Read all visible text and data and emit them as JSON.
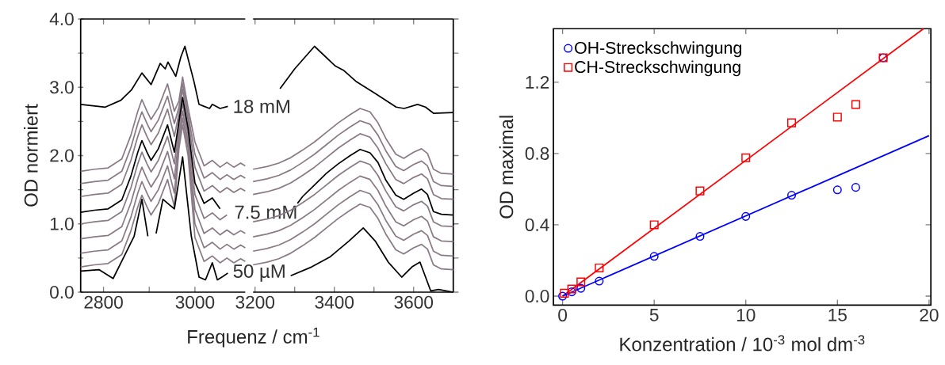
{
  "chart_data": [
    {
      "type": "line",
      "ylabel": "OD normiert",
      "xlabel": "Frequenz / cm$^{-1}$",
      "x": [
        2750,
        2780,
        2810,
        2840,
        2860,
        2875,
        2884,
        2895,
        2904,
        2920,
        2940,
        2955,
        2965,
        2973,
        2985,
        3000,
        3020,
        3038,
        3055,
        3070,
        3085,
        3100,
        3110
      ],
      "xlim": [
        2750,
        3110
      ],
      "ylim": [
        0,
        4
      ],
      "xticks": [
        2800,
        {
          "value": 2900,
          "label": null
        },
        3000
      ],
      "yticks": [
        {
          "value": 0,
          "label": "0.0"
        },
        {
          "value": 0.5,
          "label": null
        },
        {
          "value": 1,
          "label": "1.0"
        },
        {
          "value": 1.5,
          "label": null
        },
        {
          "value": 2,
          "label": "2.0"
        },
        {
          "value": 2.5,
          "label": null
        },
        {
          "value": 3,
          "label": "3.0"
        },
        {
          "value": 3.5,
          "label": null
        },
        {
          "value": 4,
          "label": "4.0"
        }
      ],
      "series": [
        {
          "color": "#000000",
          "x": [
            2750,
            2804,
            2838,
            2861,
            2884,
            2904,
            2924,
            2935,
            2941,
            2958,
            2969,
            2978,
            2998,
            3009,
            3032,
            3038,
            3055,
            3072
          ],
          "values": [
            2.75,
            2.71,
            2.81,
            2.96,
            3.21,
            3.04,
            3.35,
            3.27,
            3.37,
            3.16,
            3.44,
            3.6,
            3.08,
            2.75,
            2.69,
            2.75,
            2.69,
            2.72
          ]
        },
        {
          "color": "#8a7a86",
          "values": [
            1.77,
            1.8,
            1.82,
            1.95,
            2.3,
            2.65,
            2.82,
            2.65,
            2.53,
            2.7,
            3.05,
            2.65,
            2.8,
            3.15,
            2.7,
            2.2,
            1.85,
            1.93,
            1.83,
            1.9,
            1.83,
            1.89,
            1.85
          ]
        },
        {
          "color": "#8a7a86",
          "values": [
            1.59,
            1.62,
            1.64,
            1.77,
            2.12,
            2.47,
            2.64,
            2.47,
            2.35,
            2.52,
            2.87,
            2.47,
            2.71,
            3.06,
            2.61,
            2.02,
            1.67,
            1.75,
            1.65,
            1.72,
            1.65,
            1.71,
            1.67
          ]
        },
        {
          "color": "#8a7a86",
          "values": [
            1.4,
            1.43,
            1.45,
            1.58,
            1.93,
            2.28,
            2.45,
            2.28,
            2.16,
            2.33,
            2.68,
            2.28,
            2.62,
            2.97,
            2.52,
            1.83,
            1.48,
            1.56,
            1.46,
            1.53,
            1.46,
            1.52,
            1.48
          ]
        },
        {
          "color": "#8a7a86",
          "values": [
            1.0,
            1.03,
            1.05,
            1.18,
            1.53,
            1.88,
            2.05,
            1.88,
            1.76,
            1.93,
            2.28,
            1.88,
            2.41,
            2.76,
            2.31,
            1.43,
            1.08,
            1.16,
            1.06,
            1.13,
            null,
            null,
            null
          ]
        },
        {
          "color": "#8a7a86",
          "values": [
            0.78,
            0.81,
            0.83,
            0.96,
            1.31,
            1.66,
            1.83,
            1.66,
            1.54,
            1.71,
            2.06,
            1.66,
            2.3,
            2.65,
            2.2,
            1.21,
            0.86,
            0.94,
            0.84,
            0.91,
            0.84,
            0.9,
            0.86
          ]
        },
        {
          "color": "#8a7a86",
          "values": [
            0.57,
            0.6,
            0.62,
            0.75,
            1.1,
            1.45,
            1.62,
            1.45,
            1.33,
            1.5,
            1.85,
            1.45,
            2.2,
            2.55,
            2.1,
            1.0,
            0.65,
            0.73,
            0.63,
            0.7,
            0.63,
            0.69,
            0.65
          ]
        },
        {
          "color": "#8a7a86",
          "values": [
            0.37,
            0.4,
            0.42,
            0.55,
            0.9,
            1.25,
            1.42,
            1.25,
            1.13,
            1.3,
            1.65,
            1.25,
            2.1,
            2.45,
            2.0,
            0.8,
            0.45,
            0.53,
            0.43,
            0.5,
            0.43,
            0.49,
            0.45
          ]
        },
        {
          "color": "#000000",
          "values": [
            1.17,
            1.2,
            1.22,
            1.35,
            1.7,
            2.05,
            2.22,
            2.05,
            1.93,
            2.1,
            2.45,
            2.05,
            2.5,
            2.85,
            2.4,
            1.6,
            1.3,
            1.38,
            1.22,
            null,
            null,
            null,
            null
          ]
        },
        {
          "color": "#000000",
          "x": [
            2750,
            2790,
            2821,
            2844,
            2867,
            2884,
            2897,
            2904,
            2915,
            2930,
            2944,
            2955,
            2973,
            2992,
            3009,
            3023,
            3038,
            3049,
            3061,
            3072
          ],
          "values": [
            0.31,
            0.33,
            0.2,
            0.51,
            0.82,
            1.36,
            0.82,
            null,
            0.86,
            1.36,
            1.28,
            1.22,
            1.98,
            0.82,
            0.22,
            0.18,
            0.43,
            0.18,
            0.23,
            0.28
          ]
        }
      ],
      "annotations": [
        {
          "text": "18 mM",
          "x": 3080,
          "y": 2.72
        },
        "7.5 mM",
        {
          "text": "50 µM",
          "x": 3080,
          "y": 0.28
        }
      ]
    },
    {
      "type": "line",
      "tick_labels": "x",
      "x": [
        3195,
        3230,
        3260,
        3290,
        3320,
        3350,
        3380,
        3410,
        3440,
        3465,
        3490,
        3510,
        3530,
        3555,
        3575,
        3600,
        3620,
        3635,
        3650,
        3670,
        3700
      ],
      "xlim": [
        3195,
        3700
      ],
      "ylim": [
        0,
        4
      ],
      "xticks": [
        3200,
        {
          "value": 3300,
          "label": null
        },
        3400,
        {
          "value": 3500,
          "label": null
        },
        3600
      ],
      "yticks": [
        {
          "value": 0,
          "label": null
        },
        {
          "value": 0.5,
          "label": null
        },
        {
          "value": 1,
          "label": null
        },
        {
          "value": 1.5,
          "label": null
        },
        {
          "value": 2,
          "label": null
        },
        {
          "value": 2.5,
          "label": null
        },
        {
          "value": 3,
          "label": null
        },
        {
          "value": 3.5,
          "label": null
        },
        {
          "value": 4,
          "label": null
        }
      ],
      "series": [
        {
          "color": "#000000",
          "x": [
            3263,
            3300,
            3350,
            3403,
            3423,
            3456,
            3503,
            3556,
            3576,
            3610,
            3630,
            3650,
            3700
          ],
          "values": [
            2.98,
            3.27,
            3.6,
            3.31,
            3.25,
            3.08,
            2.91,
            2.71,
            2.69,
            2.75,
            2.71,
            2.62,
            2.63
          ]
        },
        {
          "color": "#8a7a86",
          "values": [
            1.8,
            1.84,
            1.89,
            1.97,
            2.08,
            2.2,
            2.34,
            2.48,
            2.6,
            2.69,
            2.64,
            2.48,
            2.25,
            2.02,
            1.96,
            2.05,
            2.1,
            2.03,
            1.8,
            1.74,
            1.73
          ]
        },
        {
          "color": "#8a7a86",
          "values": [
            1.62,
            1.66,
            1.71,
            1.79,
            1.9,
            2.02,
            2.16,
            2.3,
            2.42,
            2.51,
            2.46,
            2.3,
            2.07,
            1.84,
            1.78,
            1.87,
            1.92,
            1.85,
            1.62,
            1.56,
            1.55
          ]
        },
        {
          "color": "#8a7a86",
          "values": [
            1.43,
            1.47,
            1.52,
            1.6,
            1.71,
            1.83,
            1.97,
            2.11,
            2.23,
            2.32,
            2.27,
            2.11,
            1.88,
            1.65,
            1.59,
            1.68,
            1.73,
            1.66,
            1.43,
            1.37,
            1.36
          ]
        },
        {
          "color": "#8a7a86",
          "values": [
            1.03,
            1.07,
            1.12,
            1.2,
            1.31,
            1.43,
            1.57,
            1.71,
            1.83,
            1.92,
            1.87,
            1.71,
            1.48,
            1.25,
            1.19,
            1.28,
            1.33,
            1.26,
            1.03,
            0.97,
            0.96
          ]
        },
        {
          "color": "#8a7a86",
          "values": [
            0.81,
            0.85,
            0.9,
            0.98,
            1.09,
            1.21,
            1.35,
            1.49,
            1.61,
            1.7,
            1.65,
            1.49,
            1.26,
            1.03,
            0.97,
            1.06,
            1.11,
            1.04,
            0.81,
            0.75,
            0.74
          ]
        },
        {
          "color": "#8a7a86",
          "values": [
            0.6,
            0.64,
            0.69,
            0.77,
            0.88,
            1.0,
            1.14,
            1.28,
            1.4,
            1.49,
            1.44,
            1.28,
            1.05,
            0.82,
            0.76,
            0.85,
            0.9,
            0.83,
            0.6,
            0.54,
            0.53
          ]
        },
        {
          "color": "#8a7a86",
          "values": [
            0.4,
            0.44,
            0.49,
            0.57,
            0.68,
            0.8,
            0.94,
            1.08,
            1.2,
            1.29,
            1.24,
            1.08,
            0.85,
            0.62,
            0.56,
            0.65,
            0.7,
            0.63,
            0.4,
            0.34,
            0.33
          ]
        },
        {
          "color": "#000000",
          "x": [
            3307,
            3320,
            3350,
            3380,
            3410,
            3440,
            3465,
            3490,
            3510,
            3530,
            3555,
            3575,
            3600,
            3620,
            3635,
            3650,
            3670,
            3700
          ],
          "values": [
            1.3,
            1.4,
            1.57,
            1.74,
            1.88,
            2.0,
            2.09,
            2.04,
            1.9,
            1.64,
            1.42,
            1.36,
            1.45,
            1.51,
            1.43,
            1.18,
            1.14,
            1.13
          ]
        },
        {
          "color": "#000000",
          "x": [
            3290,
            3343,
            3390,
            3437,
            3473,
            3503,
            3536,
            3570,
            3596,
            3616,
            3643,
            3663,
            3700
          ],
          "values": [
            0.24,
            0.37,
            0.52,
            0.75,
            0.94,
            0.75,
            0.44,
            0.22,
            0.37,
            0.44,
            0.02,
            0.04,
            0.0
          ]
        }
      ]
    },
    {
      "type": "scatter",
      "ylabel": "OD maximal",
      "xlabel": "Konzentration / 10$^{-3}$ mol dm$^{-3}$",
      "xlim": [
        -0.5,
        20.1
      ],
      "ylim": [
        -0.05,
        1.5
      ],
      "xticks": [
        0,
        5,
        10,
        15,
        20
      ],
      "yticks": [
        {
          "value": 0,
          "label": "0.0"
        },
        {
          "value": 0.4,
          "label": "0.4"
        },
        {
          "value": 0.8,
          "label": "0.8"
        },
        {
          "value": 1.2,
          "label": "1.2"
        }
      ],
      "legend": "top left",
      "series": [
        {
          "name": "OH-Streckschwingung",
          "color": "#0000ff",
          "marker": "circle",
          "x": [
            0,
            0.5,
            1,
            2,
            5,
            7.5,
            10,
            12.5,
            15,
            16,
            17.5
          ],
          "values": [
            0,
            0.024,
            0.044,
            0.084,
            0.223,
            0.335,
            0.447,
            0.566,
            0.596,
            0.61,
            1.337
          ]
        },
        {
          "name": "CH-Streckschwingung",
          "color": "#ff0000",
          "marker": "square",
          "x": [
            0.1,
            0.5,
            1,
            2,
            5,
            7.5,
            10,
            12.5,
            15,
            16,
            17.5
          ],
          "values": [
            0.016,
            0.04,
            0.08,
            0.158,
            0.4,
            0.59,
            0.776,
            0.972,
            1.004,
            1.075,
            1.337
          ]
        },
        {
          "type": "line",
          "color": "#ff0000",
          "x": [
            0,
            19.7
          ],
          "values": [
            0,
            1.5
          ]
        },
        {
          "type": "line",
          "color": "#0000ff",
          "x": [
            0,
            20
          ],
          "values": [
            0,
            0.9
          ]
        }
      ]
    }
  ]
}
